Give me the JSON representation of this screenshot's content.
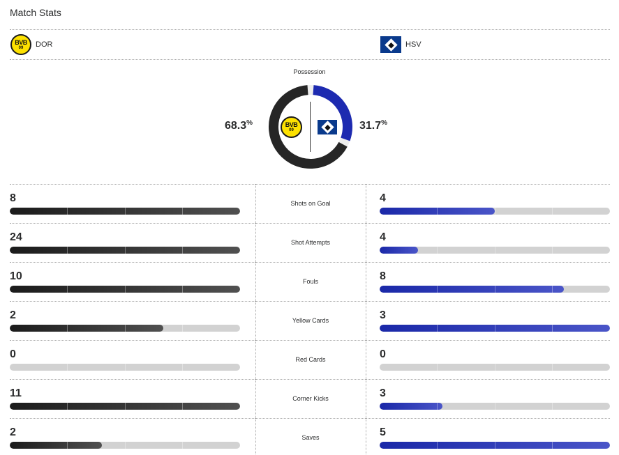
{
  "title": "Match Stats",
  "teams": {
    "home": {
      "abbr": "DOR",
      "logo_text": "BVB",
      "logo_sub": "09",
      "color": "#2b2b2b"
    },
    "away": {
      "abbr": "HSV",
      "color": "#1d2ab0"
    }
  },
  "possession": {
    "label": "Possession",
    "home_value": "68.3",
    "away_value": "31.7",
    "unit": "%",
    "home_fraction": 0.683,
    "away_fraction": 0.317
  },
  "stats": [
    {
      "label": "Shots on Goal",
      "home": "8",
      "away": "4",
      "home_fraction": 1.0,
      "away_fraction": 0.5
    },
    {
      "label": "Shot Attempts",
      "home": "24",
      "away": "4",
      "home_fraction": 1.0,
      "away_fraction": 0.167
    },
    {
      "label": "Fouls",
      "home": "10",
      "away": "8",
      "home_fraction": 1.0,
      "away_fraction": 0.8
    },
    {
      "label": "Yellow Cards",
      "home": "2",
      "away": "3",
      "home_fraction": 0.667,
      "away_fraction": 1.0
    },
    {
      "label": "Red Cards",
      "home": "0",
      "away": "0",
      "home_fraction": 0,
      "away_fraction": 0
    },
    {
      "label": "Corner Kicks",
      "home": "11",
      "away": "3",
      "home_fraction": 1.0,
      "away_fraction": 0.273
    },
    {
      "label": "Saves",
      "home": "2",
      "away": "5",
      "home_fraction": 0.4,
      "away_fraction": 1.0
    }
  ]
}
